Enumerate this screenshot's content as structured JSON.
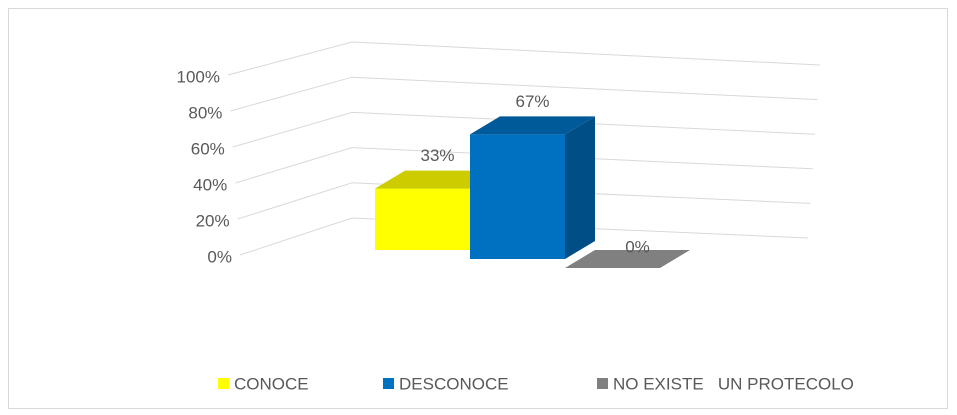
{
  "chart_data": {
    "type": "bar3d",
    "categories": [
      null
    ],
    "series": [
      {
        "name": "CONOCE",
        "color": "#ffff00",
        "values": [
          33
        ],
        "value_labels": [
          "33%"
        ]
      },
      {
        "name": "DESCONOCE",
        "color": "#0070c0",
        "values": [
          67
        ],
        "value_labels": [
          "67%"
        ]
      },
      {
        "name": "NO EXISTE   UN PROTECOLO",
        "color": "#808080",
        "values": [
          0
        ],
        "value_labels": [
          "0%"
        ]
      }
    ],
    "ylim": [
      0,
      100
    ],
    "yticks": [
      {
        "value": 0,
        "label": "0%"
      },
      {
        "value": 20,
        "label": "20%"
      },
      {
        "value": 40,
        "label": "40%"
      },
      {
        "value": 60,
        "label": "60%"
      },
      {
        "value": 80,
        "label": "80%"
      },
      {
        "value": 100,
        "label": "100%"
      }
    ],
    "grid": true,
    "legend": "bottom"
  }
}
